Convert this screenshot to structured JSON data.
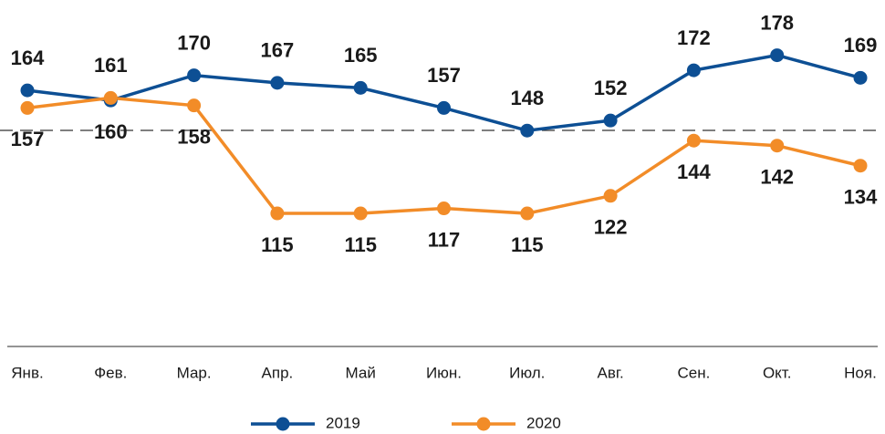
{
  "chart_data": {
    "type": "line",
    "categories": [
      "Янв.",
      "Фев.",
      "Мар.",
      "Апр.",
      "Май",
      "Июн.",
      "Июл.",
      "Авг.",
      "Сен.",
      "Окт.",
      "Ноя."
    ],
    "series": [
      {
        "name": "2019",
        "color": "#0d4f94",
        "values": [
          164,
          160,
          170,
          167,
          165,
          157,
          148,
          152,
          172,
          178,
          169
        ]
      },
      {
        "name": "2020",
        "color": "#f28c28",
        "values": [
          157,
          161,
          158,
          115,
          115,
          117,
          115,
          122,
          144,
          142,
          134
        ]
      }
    ],
    "ylim": [
      62,
      200
    ]
  }
}
